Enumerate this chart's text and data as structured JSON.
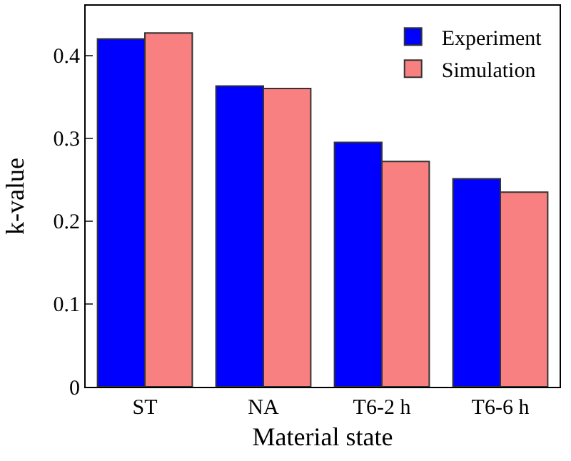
{
  "chart_data": {
    "type": "bar",
    "xlabel": "Material state",
    "ylabel": "k-value",
    "categories": [
      "ST",
      "NA",
      "T6-2 h",
      "T6-6 h"
    ],
    "series": [
      {
        "name": "Experiment",
        "color": "#0000ff",
        "values": [
          0.42,
          0.363,
          0.295,
          0.251
        ]
      },
      {
        "name": "Simulation",
        "color": "#f88080",
        "values": [
          0.427,
          0.36,
          0.272,
          0.235
        ]
      }
    ],
    "ylim": [
      0,
      0.46
    ],
    "yticks": [
      {
        "value": 0,
        "label": "0"
      },
      0.1,
      0.2,
      0.3,
      0.4
    ],
    "legend": "top right"
  }
}
